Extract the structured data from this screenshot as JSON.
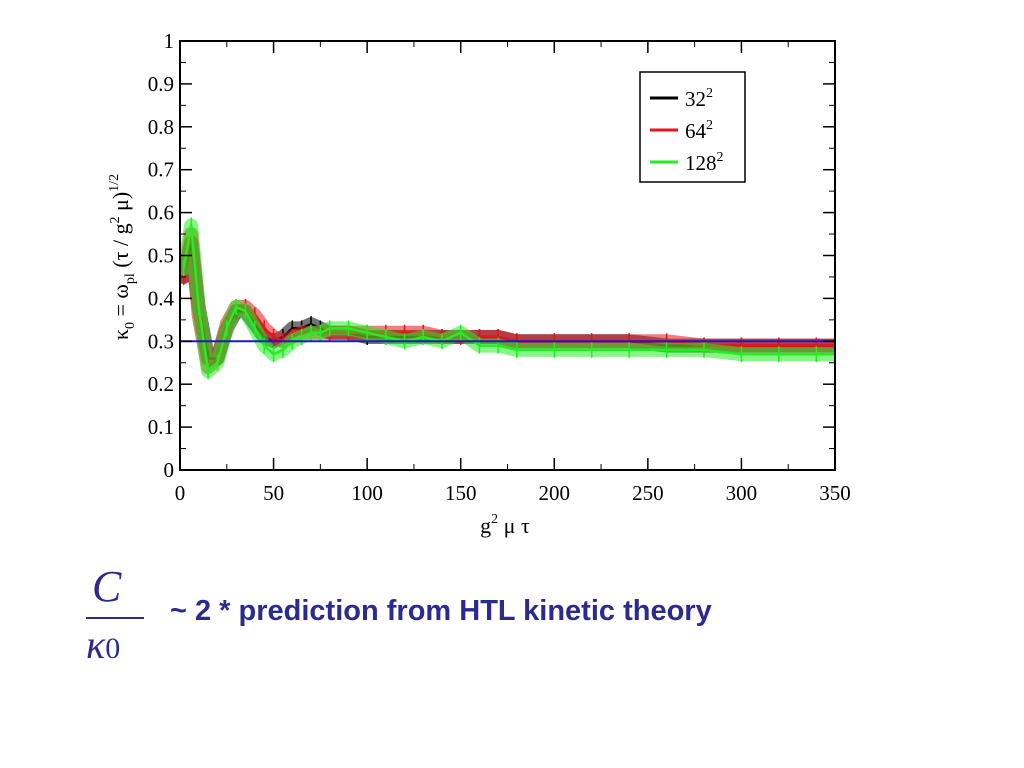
{
  "chart_data": {
    "type": "line",
    "xlabel": "g",
    "xlabel_sup": "2",
    "xlabel_rest": "μ τ",
    "ylabel": "κ0 = ωpl (τ / g2 μ)1/2",
    "ylabel_parts": {
      "kappa": "κ",
      "kappa_sub": "0",
      "eq": " = ω",
      "omega_sub": "pl",
      "paren": " (τ / g",
      "g_sup": "2",
      "close": " μ)",
      "exp": "1/2"
    },
    "xlim": [
      0,
      350
    ],
    "ylim": [
      0,
      1
    ],
    "x_ticks": [
      "0",
      "50",
      "100",
      "150",
      "200",
      "250",
      "300",
      "350"
    ],
    "y_ticks": [
      "0",
      "0.1",
      "0.2",
      "0.3",
      "0.4",
      "0.5",
      "0.6",
      "0.7",
      "0.8",
      "0.9",
      "1"
    ],
    "grid": false,
    "legend_position": "top-right",
    "reference_line": {
      "y": 0.3,
      "color": "#1a1acc"
    },
    "series": [
      {
        "name": "32",
        "name_sup": "2",
        "color": "#000000",
        "x": [
          2,
          6,
          10,
          15,
          20,
          25,
          30,
          35,
          40,
          45,
          50,
          55,
          60,
          65,
          70,
          75,
          80,
          90,
          100,
          110,
          120,
          130,
          140,
          150,
          160,
          170,
          180,
          200,
          220,
          240,
          260,
          280,
          300,
          320,
          340,
          350
        ],
        "y": [
          0.45,
          0.53,
          0.38,
          0.26,
          0.26,
          0.33,
          0.37,
          0.37,
          0.34,
          0.31,
          0.3,
          0.31,
          0.33,
          0.33,
          0.34,
          0.33,
          0.32,
          0.32,
          0.31,
          0.31,
          0.31,
          0.31,
          0.31,
          0.31,
          0.31,
          0.31,
          0.3,
          0.3,
          0.3,
          0.3,
          0.29,
          0.29,
          0.29,
          0.29,
          0.29,
          0.29
        ]
      },
      {
        "name": "64",
        "name_sup": "2",
        "color": "#e8141b",
        "x": [
          2,
          6,
          10,
          15,
          20,
          25,
          30,
          35,
          40,
          45,
          50,
          55,
          60,
          65,
          70,
          75,
          80,
          90,
          100,
          110,
          120,
          130,
          140,
          150,
          160,
          170,
          180,
          200,
          220,
          240,
          260,
          280,
          300,
          320,
          340,
          350
        ],
        "y": [
          0.45,
          0.55,
          0.36,
          0.24,
          0.26,
          0.34,
          0.38,
          0.38,
          0.36,
          0.33,
          0.31,
          0.3,
          0.31,
          0.32,
          0.32,
          0.32,
          0.32,
          0.32,
          0.32,
          0.32,
          0.32,
          0.32,
          0.31,
          0.31,
          0.31,
          0.31,
          0.3,
          0.3,
          0.3,
          0.3,
          0.3,
          0.29,
          0.29,
          0.29,
          0.29,
          0.29
        ]
      },
      {
        "name": "128",
        "name_sup": "2",
        "color": "#22ee22",
        "x": [
          2,
          6,
          10,
          15,
          20,
          25,
          30,
          35,
          40,
          45,
          50,
          55,
          60,
          65,
          70,
          75,
          80,
          90,
          100,
          110,
          120,
          130,
          140,
          150,
          160,
          170,
          180,
          200,
          220,
          240,
          260,
          280,
          300,
          320,
          340,
          350
        ],
        "y": [
          0.47,
          0.57,
          0.38,
          0.23,
          0.25,
          0.33,
          0.38,
          0.37,
          0.33,
          0.29,
          0.27,
          0.28,
          0.3,
          0.31,
          0.32,
          0.32,
          0.33,
          0.33,
          0.32,
          0.31,
          0.3,
          0.31,
          0.3,
          0.32,
          0.29,
          0.29,
          0.28,
          0.28,
          0.28,
          0.28,
          0.28,
          0.28,
          0.27,
          0.27,
          0.27,
          0.27
        ]
      }
    ]
  },
  "caption": {
    "fraction_numerator": "C",
    "fraction_denominator": "κ",
    "fraction_denominator_sub": "0",
    "text": "~ 2 * prediction from HTL kinetic theory",
    "color": "#2b2b8f"
  }
}
